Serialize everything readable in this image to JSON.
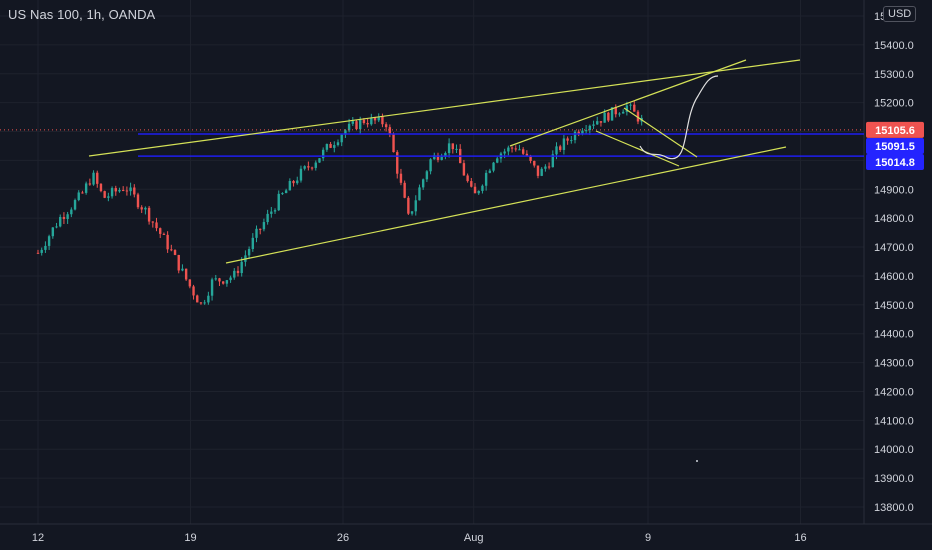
{
  "header": {
    "symbol_title": "US Nas 100, 1h, OANDA",
    "currency": "USD"
  },
  "colors": {
    "background": "#131722",
    "grid": "#1e222d",
    "axis_text": "#d1d4dc",
    "candle_up": "#26a69a",
    "candle_down": "#ef5350",
    "trendline": "#d4e157",
    "level_line": "#1e1ef0",
    "last_price_label": "#ef5350",
    "level_label": "#2424ff",
    "projection_path": "#e0e0e0"
  },
  "chart_data": {
    "type": "candlestick",
    "symbol": "US Nas 100",
    "interval": "1h",
    "source": "OANDA",
    "currency": "USD",
    "y_axis": {
      "ticks": [
        "13800.0",
        "13900.0",
        "14000.0",
        "14100.0",
        "14200.0",
        "14300.0",
        "14400.0",
        "14500.0",
        "14600.0",
        "14700.0",
        "14800.0",
        "14900.0",
        "15000.0",
        "15100.0",
        "15200.0",
        "15300.0",
        "15400.0",
        "15500.0"
      ],
      "range": [
        13750,
        15540
      ]
    },
    "x_axis": {
      "ticks": [
        "12",
        "19",
        "26",
        "Aug",
        "9",
        "16"
      ]
    },
    "price_labels": [
      {
        "value": "15105.6",
        "kind": "last-price"
      },
      {
        "value": "15091.5",
        "kind": "horizontal-level"
      },
      {
        "value": "15014.8",
        "kind": "horizontal-level"
      }
    ],
    "price_path": [
      [
        "12",
        14680
      ],
      [
        "13",
        14800
      ],
      [
        "14",
        14880
      ],
      [
        "14.5",
        14950
      ],
      [
        "15",
        14870
      ],
      [
        "16",
        14910
      ],
      [
        "17",
        14820
      ],
      [
        "18",
        14700
      ],
      [
        "19",
        14560
      ],
      [
        "19.5",
        14500
      ],
      [
        "20",
        14580
      ],
      [
        "21",
        14600
      ],
      [
        "22",
        14740
      ],
      [
        "23",
        14860
      ],
      [
        "24",
        14950
      ],
      [
        "25",
        15020
      ],
      [
        "26",
        15100
      ],
      [
        "27",
        15140
      ],
      [
        "28",
        15130
      ],
      [
        "29",
        14800
      ],
      [
        "30",
        15000
      ],
      [
        "31",
        15060
      ],
      [
        "Aug 1",
        14870
      ],
      [
        "Aug 2",
        15020
      ],
      [
        "Aug 3",
        15050
      ],
      [
        "Aug 4",
        14950
      ],
      [
        "Aug 5",
        15050
      ],
      [
        "Aug 6",
        15120
      ],
      [
        "Aug 7",
        15150
      ],
      [
        "8",
        15190
      ],
      [
        "8.5",
        15130
      ]
    ],
    "trendlines": [
      {
        "name": "rising wedge upper",
        "from": [
          "14",
          15020
        ],
        "to": [
          "Aug 11.5",
          15300
        ]
      },
      {
        "name": "rising wedge lower",
        "from": [
          "20",
          14650
        ],
        "to": [
          "Aug 14.5",
          15040
        ]
      },
      {
        "name": "channel upper",
        "from": [
          "Aug 2.5",
          15060
        ],
        "to": [
          "Aug 12",
          15350
        ]
      },
      {
        "name": "flag upper",
        "from": [
          "Aug 8",
          15200
        ],
        "to": [
          "Aug 10.5",
          15020
        ]
      },
      {
        "name": "flag lower",
        "from": [
          "Aug 6.5",
          15110
        ],
        "to": [
          "Aug 10",
          14990
        ]
      }
    ],
    "horizontal_levels": [
      15091.5,
      15014.8
    ],
    "projection": [
      [
        "Aug 9",
        15060
      ],
      [
        "Aug 10",
        15020
      ],
      [
        "Aug 10.5",
        15100
      ],
      [
        "Aug 11.5",
        15260
      ],
      [
        "Aug 12",
        15300
      ]
    ]
  }
}
